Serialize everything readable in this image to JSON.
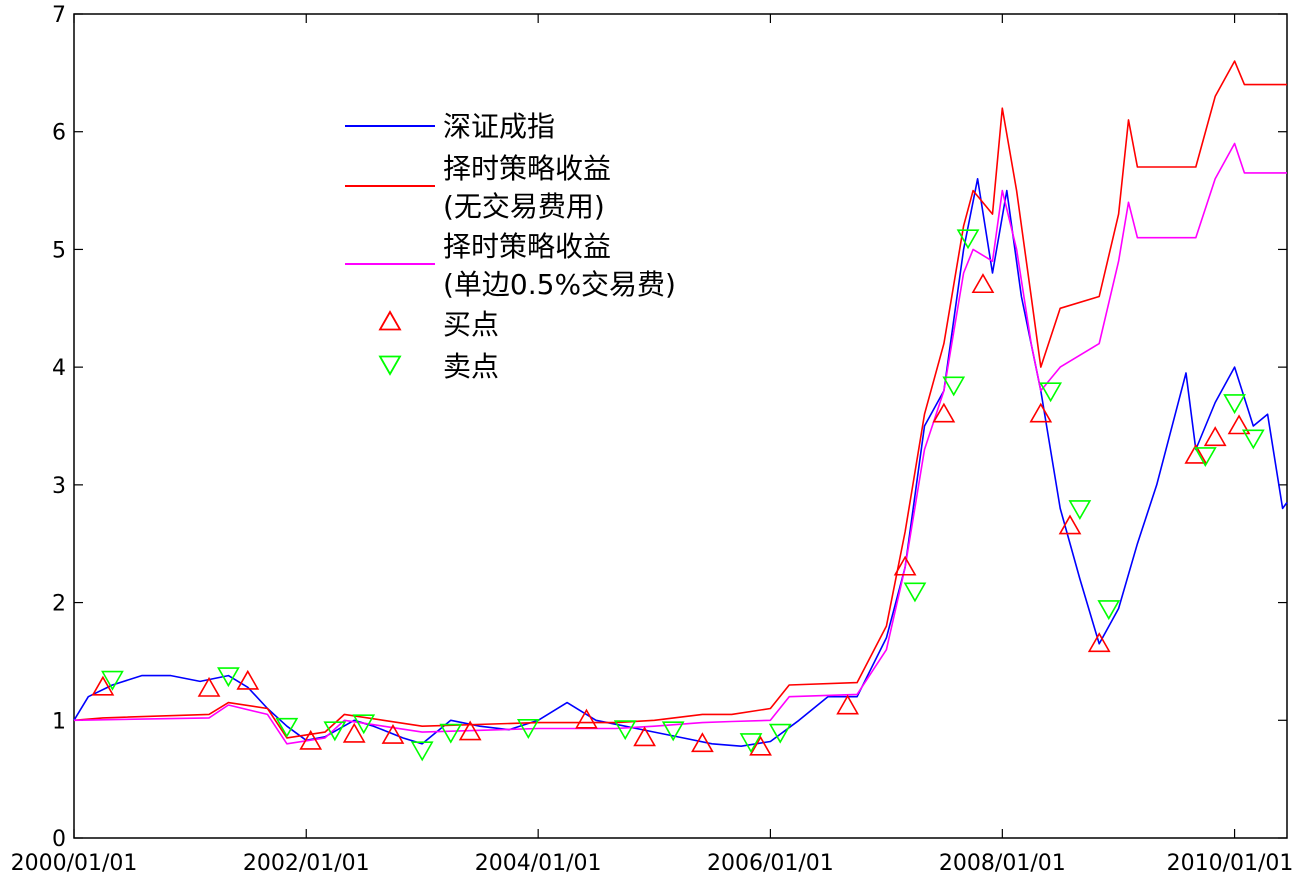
{
  "chart_data": {
    "type": "line",
    "title": "",
    "xlabel": "",
    "ylabel": "",
    "x_start": "2000/01/01",
    "x_end": "2010/06/15",
    "xlim": [
      "2000/01/01",
      "2010/06/15"
    ],
    "ylim": [
      0,
      7
    ],
    "x_tick_labels": [
      "2000/01/01",
      "2002/01/01",
      "2004/01/01",
      "2006/01/01",
      "2008/01/01",
      "2010/01/01"
    ],
    "y_tick_labels": [
      "0",
      "1",
      "2",
      "3",
      "4",
      "5",
      "6",
      "7"
    ],
    "grid": false,
    "legend_position": "upper-left",
    "series": [
      {
        "name": "深证成指",
        "color": "#0000ff",
        "points": [
          [
            "2000/01/01",
            1.0
          ],
          [
            "2000/02/15",
            1.2
          ],
          [
            "2000/05/01",
            1.3
          ],
          [
            "2000/08/01",
            1.38
          ],
          [
            "2000/11/01",
            1.38
          ],
          [
            "2001/02/01",
            1.33
          ],
          [
            "2001/05/01",
            1.38
          ],
          [
            "2001/07/01",
            1.28
          ],
          [
            "2001/09/01",
            1.1
          ],
          [
            "2001/11/01",
            0.95
          ],
          [
            "2002/01/01",
            0.83
          ],
          [
            "2002/03/01",
            0.86
          ],
          [
            "2002/06/01",
            1.0
          ],
          [
            "2002/08/01",
            0.95
          ],
          [
            "2002/11/01",
            0.85
          ],
          [
            "2003/01/01",
            0.8
          ],
          [
            "2003/04/01",
            1.0
          ],
          [
            "2003/07/01",
            0.95
          ],
          [
            "2003/10/01",
            0.92
          ],
          [
            "2004/01/01",
            1.0
          ],
          [
            "2004/04/01",
            1.15
          ],
          [
            "2004/07/01",
            1.0
          ],
          [
            "2004/10/01",
            0.95
          ],
          [
            "2005/01/01",
            0.9
          ],
          [
            "2005/04/01",
            0.85
          ],
          [
            "2005/07/01",
            0.8
          ],
          [
            "2005/10/01",
            0.78
          ],
          [
            "2006/01/01",
            0.82
          ],
          [
            "2006/04/01",
            1.0
          ],
          [
            "2006/07/01",
            1.2
          ],
          [
            "2006/10/01",
            1.2
          ],
          [
            "2007/01/01",
            1.7
          ],
          [
            "2007/03/01",
            2.3
          ],
          [
            "2007/05/01",
            3.5
          ],
          [
            "2007/07/01",
            3.8
          ],
          [
            "2007/09/01",
            5.0
          ],
          [
            "2007/10/15",
            5.6
          ],
          [
            "2007/12/01",
            4.8
          ],
          [
            "2008/01/15",
            5.5
          ],
          [
            "2008/03/01",
            4.6
          ],
          [
            "2008/05/01",
            3.8
          ],
          [
            "2008/07/01",
            2.8
          ],
          [
            "2008/09/01",
            2.2
          ],
          [
            "2008/11/01",
            1.65
          ],
          [
            "2009/01/01",
            1.95
          ],
          [
            "2009/03/01",
            2.5
          ],
          [
            "2009/05/01",
            3.0
          ],
          [
            "2009/08/01",
            3.95
          ],
          [
            "2009/09/01",
            3.3
          ],
          [
            "2009/11/01",
            3.7
          ],
          [
            "2010/01/01",
            4.0
          ],
          [
            "2010/03/01",
            3.5
          ],
          [
            "2010/04/15",
            3.6
          ],
          [
            "2010/06/01",
            2.8
          ],
          [
            "2010/06/15",
            2.85
          ]
        ]
      },
      {
        "name": "择时策略收益(无交易费用)",
        "color": "#ff0000",
        "points": [
          [
            "2000/01/01",
            1.0
          ],
          [
            "2000/04/01",
            1.02
          ],
          [
            "2001/03/01",
            1.05
          ],
          [
            "2001/05/01",
            1.15
          ],
          [
            "2001/09/01",
            1.1
          ],
          [
            "2001/11/01",
            0.85
          ],
          [
            "2002/03/01",
            0.9
          ],
          [
            "2002/05/01",
            1.05
          ],
          [
            "2002/09/01",
            1.0
          ],
          [
            "2003/01/01",
            0.95
          ],
          [
            "2004/01/01",
            0.98
          ],
          [
            "2004/09/01",
            0.98
          ],
          [
            "2005/01/01",
            1.0
          ],
          [
            "2005/06/01",
            1.05
          ],
          [
            "2005/09/01",
            1.05
          ],
          [
            "2006/01/01",
            1.1
          ],
          [
            "2006/03/01",
            1.3
          ],
          [
            "2006/10/01",
            1.32
          ],
          [
            "2007/01/01",
            1.8
          ],
          [
            "2007/03/01",
            2.6
          ],
          [
            "2007/05/01",
            3.6
          ],
          [
            "2007/07/01",
            4.2
          ],
          [
            "2007/09/01",
            5.2
          ],
          [
            "2007/10/01",
            5.5
          ],
          [
            "2007/12/01",
            5.3
          ],
          [
            "2008/01/01",
            6.2
          ],
          [
            "2008/02/15",
            5.5
          ],
          [
            "2008/04/01",
            4.6
          ],
          [
            "2008/05/01",
            4.0
          ],
          [
            "2008/07/01",
            4.5
          ],
          [
            "2008/11/01",
            4.6
          ],
          [
            "2009/01/01",
            5.3
          ],
          [
            "2009/02/01",
            6.1
          ],
          [
            "2009/03/01",
            5.7
          ],
          [
            "2009/09/01",
            5.7
          ],
          [
            "2009/11/01",
            6.3
          ],
          [
            "2010/01/01",
            6.6
          ],
          [
            "2010/02/01",
            6.4
          ],
          [
            "2010/06/15",
            6.4
          ]
        ]
      },
      {
        "name": "择时策略收益(单边0.5%交易费)",
        "color": "#ff00ff",
        "points": [
          [
            "2000/01/01",
            1.0
          ],
          [
            "2001/03/01",
            1.02
          ],
          [
            "2001/05/01",
            1.13
          ],
          [
            "2001/09/01",
            1.05
          ],
          [
            "2001/11/01",
            0.8
          ],
          [
            "2002/03/01",
            0.85
          ],
          [
            "2002/05/01",
            1.0
          ],
          [
            "2002/09/01",
            0.95
          ],
          [
            "2003/01/01",
            0.9
          ],
          [
            "2004/01/01",
            0.93
          ],
          [
            "2004/09/01",
            0.93
          ],
          [
            "2005/01/01",
            0.95
          ],
          [
            "2005/06/01",
            0.98
          ],
          [
            "2005/09/01",
            0.99
          ],
          [
            "2006/01/01",
            1.0
          ],
          [
            "2006/03/01",
            1.2
          ],
          [
            "2006/10/01",
            1.22
          ],
          [
            "2007/01/01",
            1.6
          ],
          [
            "2007/03/01",
            2.3
          ],
          [
            "2007/05/01",
            3.3
          ],
          [
            "2007/07/01",
            3.8
          ],
          [
            "2007/09/01",
            4.8
          ],
          [
            "2007/10/01",
            5.0
          ],
          [
            "2007/12/01",
            4.9
          ],
          [
            "2008/01/01",
            5.5
          ],
          [
            "2008/02/15",
            5.0
          ],
          [
            "2008/04/01",
            4.2
          ],
          [
            "2008/05/01",
            3.8
          ],
          [
            "2008/07/01",
            4.0
          ],
          [
            "2008/11/01",
            4.2
          ],
          [
            "2009/01/01",
            4.9
          ],
          [
            "2009/02/01",
            5.4
          ],
          [
            "2009/03/01",
            5.1
          ],
          [
            "2009/09/01",
            5.1
          ],
          [
            "2009/11/01",
            5.6
          ],
          [
            "2010/01/01",
            5.9
          ],
          [
            "2010/02/01",
            5.65
          ],
          [
            "2010/06/15",
            5.65
          ]
        ]
      }
    ],
    "buy_points": {
      "name": "买点",
      "color": "#ff0000",
      "marker": "triangle-up",
      "points": [
        [
          "2000/04/01",
          1.28
        ],
        [
          "2001/03/01",
          1.27
        ],
        [
          "2001/07/01",
          1.33
        ],
        [
          "2002/01/15",
          0.82
        ],
        [
          "2002/06/01",
          0.88
        ],
        [
          "2002/10/01",
          0.87
        ],
        [
          "2003/06/01",
          0.9
        ],
        [
          "2004/06/01",
          1.0
        ],
        [
          "2004/12/01",
          0.85
        ],
        [
          "2005/06/01",
          0.8
        ],
        [
          "2005/12/01",
          0.77
        ],
        [
          "2006/09/01",
          1.12
        ],
        [
          "2007/03/01",
          2.3
        ],
        [
          "2007/07/01",
          3.6
        ],
        [
          "2007/11/01",
          4.7
        ],
        [
          "2008/05/01",
          3.6
        ],
        [
          "2008/08/01",
          2.65
        ],
        [
          "2008/11/01",
          1.65
        ],
        [
          "2009/09/01",
          3.25
        ],
        [
          "2009/11/01",
          3.4
        ],
        [
          "2010/01/15",
          3.5
        ]
      ]
    },
    "sell_points": {
      "name": "卖点",
      "color": "#00ff00",
      "marker": "triangle-down",
      "points": [
        [
          "2000/05/01",
          1.35
        ],
        [
          "2001/05/01",
          1.38
        ],
        [
          "2001/11/01",
          0.95
        ],
        [
          "2002/04/01",
          0.92
        ],
        [
          "2002/07/01",
          0.98
        ],
        [
          "2003/01/01",
          0.75
        ],
        [
          "2003/04/01",
          0.9
        ],
        [
          "2003/12/01",
          0.94
        ],
        [
          "2004/10/01",
          0.93
        ],
        [
          "2005/03/01",
          0.92
        ],
        [
          "2005/11/01",
          0.82
        ],
        [
          "2006/02/01",
          0.9
        ],
        [
          "2007/04/01",
          2.1
        ],
        [
          "2007/08/01",
          3.85
        ],
        [
          "2007/09/15",
          5.1
        ],
        [
          "2008/06/01",
          3.8
        ],
        [
          "2008/09/01",
          2.8
        ],
        [
          "2008/12/01",
          1.95
        ],
        [
          "2009/10/01",
          3.25
        ],
        [
          "2010/01/01",
          3.7
        ],
        [
          "2010/03/01",
          3.4
        ]
      ]
    }
  },
  "legend": {
    "items": [
      {
        "type": "line",
        "color": "#0000ff",
        "lines": [
          "深证成指"
        ]
      },
      {
        "type": "line",
        "color": "#ff0000",
        "lines": [
          "择时策略收益",
          "(无交易费用)"
        ]
      },
      {
        "type": "line",
        "color": "#ff00ff",
        "lines": [
          "择时策略收益",
          "(单边0.5%交易费)"
        ]
      },
      {
        "type": "triangle-up",
        "color": "#ff0000",
        "lines": [
          "买点"
        ]
      },
      {
        "type": "triangle-down",
        "color": "#00ff00",
        "lines": [
          "卖点"
        ]
      }
    ]
  }
}
